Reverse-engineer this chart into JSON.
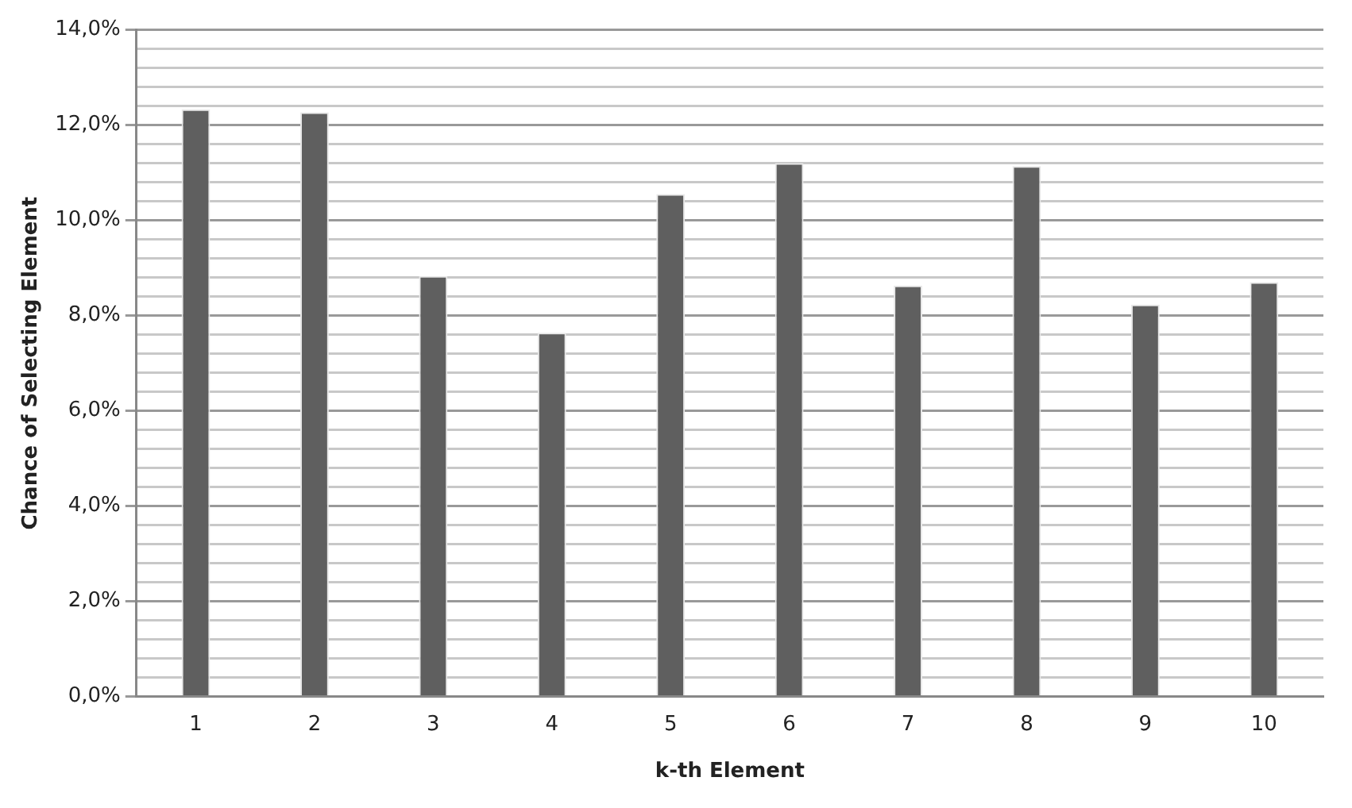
{
  "chart_data": {
    "type": "bar",
    "xlabel": "k-th Element",
    "ylabel": "Chance of Selecting Element",
    "categories": [
      "1",
      "2",
      "3",
      "4",
      "5",
      "6",
      "7",
      "8",
      "9",
      "10"
    ],
    "values": [
      12.33,
      12.27,
      8.83,
      7.64,
      10.55,
      11.2,
      8.63,
      11.14,
      8.23,
      8.7
    ],
    "color": "#5f5f5f",
    "ylim": [
      0,
      14
    ],
    "yticks": [
      {
        "value": 0,
        "label": "0,0%"
      },
      {
        "value": 0.4,
        "label": null
      },
      {
        "value": 0.8,
        "label": null
      },
      {
        "value": 1.2,
        "label": null
      },
      {
        "value": 1.6,
        "label": null
      },
      {
        "value": 2,
        "label": "2,0%"
      },
      {
        "value": 2.4,
        "label": null
      },
      {
        "value": 2.8,
        "label": null
      },
      {
        "value": 3.2,
        "label": null
      },
      {
        "value": 3.6,
        "label": null
      },
      {
        "value": 4,
        "label": "4,0%"
      },
      {
        "value": 4.4,
        "label": null
      },
      {
        "value": 4.8,
        "label": null
      },
      {
        "value": 5.2,
        "label": null
      },
      {
        "value": 5.6,
        "label": null
      },
      {
        "value": 6,
        "label": "6,0%"
      },
      {
        "value": 6.4,
        "label": null
      },
      {
        "value": 6.8,
        "label": null
      },
      {
        "value": 7.2,
        "label": null
      },
      {
        "value": 7.6,
        "label": null
      },
      {
        "value": 8,
        "label": "8,0%"
      },
      {
        "value": 8.4,
        "label": null
      },
      {
        "value": 8.8,
        "label": null
      },
      {
        "value": 9.2,
        "label": null
      },
      {
        "value": 9.6,
        "label": null
      },
      {
        "value": 10,
        "label": "10,0%"
      },
      {
        "value": 10.4,
        "label": null
      },
      {
        "value": 10.8,
        "label": null
      },
      {
        "value": 11.2,
        "label": null
      },
      {
        "value": 11.6,
        "label": null
      },
      {
        "value": 12,
        "label": "12,0%"
      },
      {
        "value": 12.4,
        "label": null
      },
      {
        "value": 12.8,
        "label": null
      },
      {
        "value": 13.2,
        "label": null
      },
      {
        "value": 13.6,
        "label": null
      },
      {
        "value": 14,
        "label": "14,0%"
      }
    ],
    "grid": "y",
    "legend": false
  }
}
